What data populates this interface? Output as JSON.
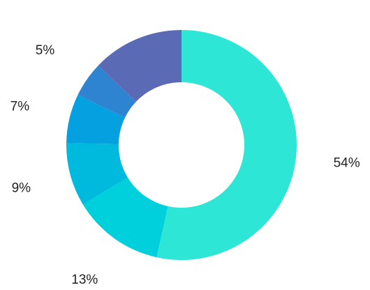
{
  "chart_data": {
    "type": "pie",
    "title": "",
    "donut": true,
    "start_angle_deg": 0,
    "direction": "clockwise",
    "slices": [
      {
        "label": "54%",
        "value": 54,
        "color": "#2EE6D6"
      },
      {
        "label": "13%",
        "value": 13,
        "color": "#00D0DC"
      },
      {
        "label": "9%",
        "value": 9,
        "color": "#00BADE"
      },
      {
        "label": "7%",
        "value": 7,
        "color": "#05A0E0"
      },
      {
        "label": "5%",
        "value": 5,
        "color": "#2E84D0"
      },
      {
        "label": "13%",
        "value": 13,
        "color": "#5A6AB4"
      }
    ]
  }
}
